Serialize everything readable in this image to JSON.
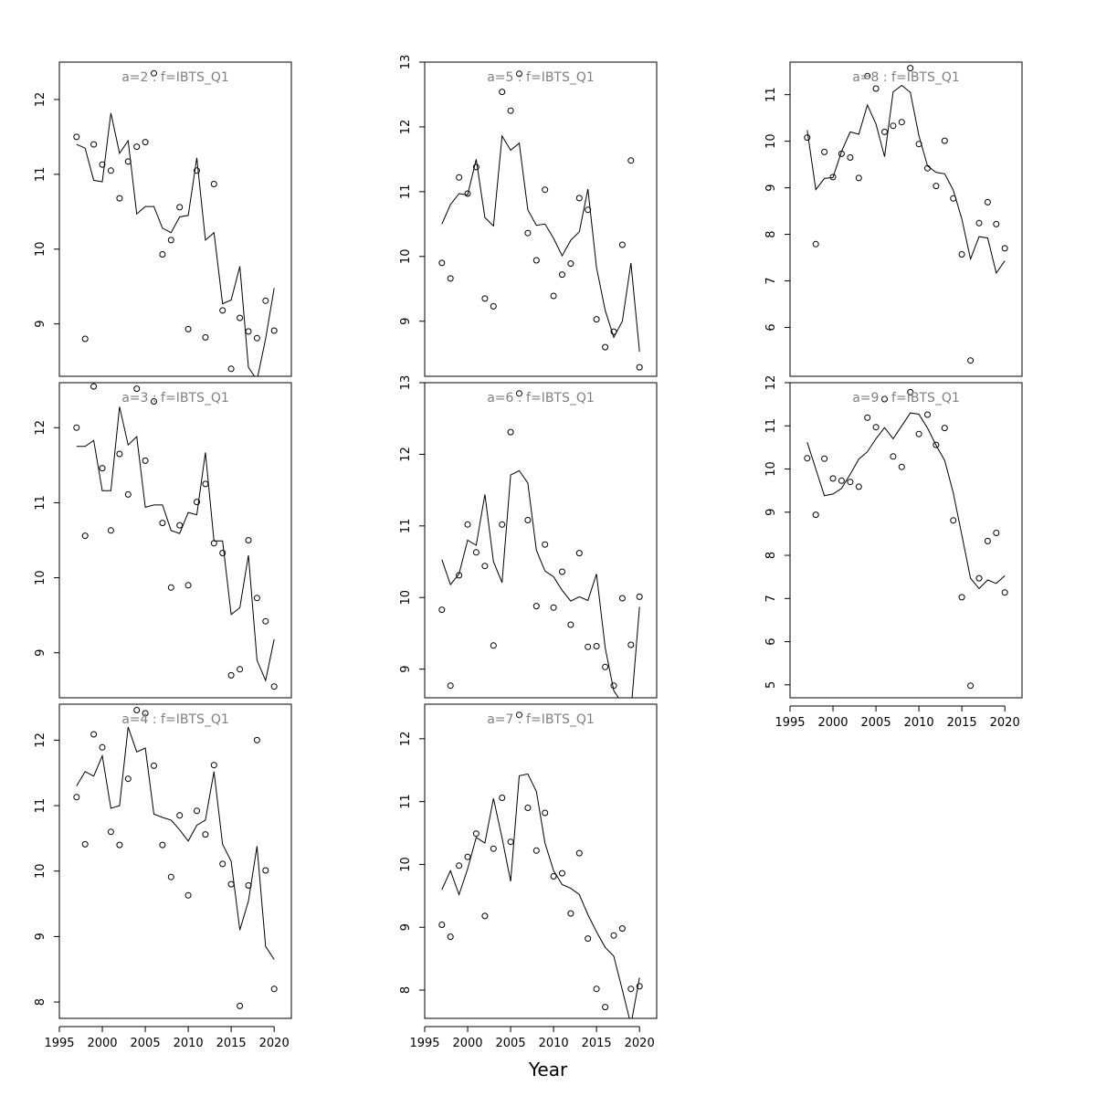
{
  "figure": {
    "xlabel": "Year"
  },
  "chart_data": [
    {
      "type": "scatter",
      "title": "a=2 : f=IBTS_Q1",
      "ylim": [
        8.3,
        12.5
      ],
      "yticks": [
        9,
        10,
        11,
        12
      ],
      "xlim": [
        1995,
        2022
      ],
      "xticks": [],
      "show_x_axis": false,
      "x": [
        1997,
        1998,
        1999,
        2000,
        2001,
        2002,
        2003,
        2004,
        2005,
        2006,
        2007,
        2008,
        2009,
        2010,
        2011,
        2012,
        2013,
        2014,
        2015,
        2016,
        2017,
        2018,
        2019,
        2020
      ],
      "observed": [
        11.5,
        8.8,
        11.4,
        11.13,
        11.05,
        10.68,
        11.17,
        11.37,
        11.43,
        12.35,
        9.93,
        10.12,
        10.56,
        8.93,
        11.05,
        8.82,
        10.87,
        9.18,
        8.4,
        9.08,
        8.9,
        8.81,
        9.31,
        8.91
      ],
      "fitted": [
        11.4,
        11.35,
        10.92,
        10.9,
        11.82,
        11.28,
        11.45,
        10.47,
        10.57,
        10.57,
        10.28,
        10.22,
        10.43,
        10.45,
        11.22,
        10.12,
        10.22,
        9.27,
        9.32,
        9.77,
        8.42,
        8.25,
        8.8,
        9.48
      ]
    },
    {
      "type": "scatter",
      "title": "a=3 : f=IBTS_Q1",
      "ylim": [
        8.4,
        12.6
      ],
      "yticks": [
        9,
        10,
        11,
        12
      ],
      "xlim": [
        1995,
        2022
      ],
      "xticks": [],
      "show_x_axis": false,
      "x": [
        1997,
        1998,
        1999,
        2000,
        2001,
        2002,
        2003,
        2004,
        2005,
        2006,
        2007,
        2008,
        2009,
        2010,
        2011,
        2012,
        2013,
        2014,
        2015,
        2016,
        2017,
        2018,
        2019,
        2020
      ],
      "observed": [
        12.0,
        10.56,
        12.55,
        11.46,
        10.63,
        11.65,
        11.11,
        12.52,
        11.56,
        12.35,
        10.73,
        9.87,
        10.7,
        9.9,
        11.01,
        11.25,
        10.46,
        10.33,
        8.7,
        8.78,
        10.5,
        9.73,
        9.42,
        8.55
      ],
      "fitted": [
        11.75,
        11.75,
        11.83,
        11.16,
        11.16,
        12.28,
        11.77,
        11.88,
        10.94,
        10.97,
        10.97,
        10.63,
        10.59,
        10.87,
        10.84,
        11.67,
        10.49,
        10.49,
        9.51,
        9.6,
        10.3,
        8.9,
        8.63,
        9.18
      ]
    },
    {
      "type": "scatter",
      "title": "a=4 : f=IBTS_Q1",
      "ylim": [
        7.75,
        12.55
      ],
      "yticks": [
        8,
        9,
        10,
        11,
        12
      ],
      "xlim": [
        1995,
        2022
      ],
      "xticks": [
        1995,
        2000,
        2005,
        2010,
        2015,
        2020
      ],
      "show_x_axis": true,
      "x": [
        1997,
        1998,
        1999,
        2000,
        2001,
        2002,
        2003,
        2004,
        2005,
        2006,
        2007,
        2008,
        2009,
        2010,
        2011,
        2012,
        2013,
        2014,
        2015,
        2016,
        2017,
        2018,
        2019,
        2020
      ],
      "observed": [
        11.13,
        10.41,
        12.09,
        11.89,
        10.6,
        10.4,
        11.41,
        12.46,
        12.41,
        11.61,
        10.4,
        9.91,
        10.85,
        9.63,
        10.92,
        10.56,
        11.62,
        10.11,
        9.8,
        7.94,
        9.78,
        12.0,
        10.01,
        8.2
      ],
      "fitted": [
        11.3,
        11.52,
        11.45,
        11.76,
        10.96,
        11.0,
        12.2,
        11.82,
        11.88,
        10.87,
        10.82,
        10.78,
        10.63,
        10.46,
        10.7,
        10.78,
        11.52,
        10.41,
        10.15,
        9.1,
        9.54,
        10.38,
        8.85,
        8.65
      ]
    },
    {
      "type": "scatter",
      "title": "a=5 : f=IBTS_Q1",
      "ylim": [
        8.15,
        13.0
      ],
      "yticks": [
        9,
        10,
        11,
        12,
        13
      ],
      "xlim": [
        1995,
        2022
      ],
      "xticks": [],
      "show_x_axis": false,
      "x": [
        1997,
        1998,
        1999,
        2000,
        2001,
        2002,
        2003,
        2004,
        2005,
        2006,
        2007,
        2008,
        2009,
        2010,
        2011,
        2012,
        2013,
        2014,
        2015,
        2016,
        2017,
        2018,
        2019,
        2020
      ],
      "observed": [
        9.9,
        9.66,
        11.22,
        10.97,
        11.38,
        9.35,
        9.23,
        12.54,
        12.25,
        12.82,
        10.36,
        9.94,
        11.03,
        9.39,
        9.72,
        9.89,
        10.9,
        10.72,
        9.03,
        8.6,
        8.84,
        10.18,
        11.48,
        8.29
      ],
      "fitted": [
        10.5,
        10.8,
        10.97,
        10.95,
        11.5,
        10.6,
        10.47,
        11.86,
        11.64,
        11.75,
        10.72,
        10.48,
        10.5,
        10.28,
        10.01,
        10.25,
        10.38,
        11.04,
        9.83,
        9.17,
        8.75,
        9.0,
        9.9,
        8.53
      ]
    },
    {
      "type": "scatter",
      "title": "a=6 : f=IBTS_Q1",
      "ylim": [
        8.6,
        13.0
      ],
      "yticks": [
        9,
        10,
        11,
        12,
        13
      ],
      "xlim": [
        1995,
        2022
      ],
      "xticks": [],
      "show_x_axis": false,
      "x": [
        1997,
        1998,
        1999,
        2000,
        2001,
        2002,
        2003,
        2004,
        2005,
        2006,
        2007,
        2008,
        2009,
        2010,
        2011,
        2012,
        2013,
        2014,
        2015,
        2016,
        2017,
        2018,
        2019,
        2020
      ],
      "observed": [
        9.83,
        8.77,
        10.31,
        11.02,
        10.63,
        10.44,
        9.33,
        11.02,
        12.31,
        12.85,
        11.08,
        9.88,
        10.74,
        9.86,
        10.36,
        9.62,
        10.62,
        9.31,
        9.32,
        9.03,
        8.77,
        9.99,
        9.34,
        10.01
      ],
      "fitted": [
        10.53,
        10.18,
        10.33,
        10.8,
        10.73,
        11.44,
        10.5,
        10.21,
        11.71,
        11.77,
        11.6,
        10.66,
        10.37,
        10.29,
        10.1,
        9.95,
        10.01,
        9.96,
        10.33,
        9.3,
        8.7,
        8.52,
        8.4,
        9.87
      ]
    },
    {
      "type": "scatter",
      "title": "a=7 : f=IBTS_Q1",
      "ylim": [
        7.55,
        12.55
      ],
      "yticks": [
        8,
        9,
        10,
        11,
        12
      ],
      "xlim": [
        1995,
        2022
      ],
      "xticks": [
        1995,
        2000,
        2005,
        2010,
        2015,
        2020
      ],
      "show_x_axis": true,
      "x": [
        1997,
        1998,
        1999,
        2000,
        2001,
        2002,
        2003,
        2004,
        2005,
        2006,
        2007,
        2008,
        2009,
        2010,
        2011,
        2012,
        2013,
        2014,
        2015,
        2016,
        2017,
        2018,
        2019,
        2020
      ],
      "observed": [
        9.04,
        8.85,
        9.98,
        10.12,
        10.49,
        9.18,
        10.25,
        11.06,
        10.36,
        12.38,
        10.9,
        10.22,
        10.82,
        9.81,
        9.86,
        9.22,
        10.18,
        8.82,
        8.02,
        7.73,
        8.87,
        8.98,
        8.02,
        8.06
      ],
      "fitted": [
        9.6,
        9.9,
        9.52,
        9.93,
        10.43,
        10.34,
        11.05,
        10.42,
        9.73,
        11.41,
        11.44,
        11.16,
        10.34,
        9.9,
        9.68,
        9.62,
        9.52,
        9.2,
        8.93,
        8.68,
        8.54,
        8.0,
        7.45,
        8.2
      ]
    },
    {
      "type": "scatter",
      "title": "a=8 : f=IBTS_Q1",
      "ylim": [
        4.95,
        11.7
      ],
      "yticks": [
        6,
        7,
        8,
        9,
        10,
        11
      ],
      "xlim": [
        1995,
        2022
      ],
      "xticks": [],
      "show_x_axis": false,
      "x": [
        1997,
        1998,
        1999,
        2000,
        2001,
        2002,
        2003,
        2004,
        2005,
        2006,
        2007,
        2008,
        2009,
        2010,
        2011,
        2012,
        2013,
        2014,
        2015,
        2016,
        2017,
        2018,
        2019,
        2020
      ],
      "observed": [
        10.08,
        7.79,
        9.77,
        9.23,
        9.73,
        9.65,
        9.21,
        11.4,
        11.13,
        10.2,
        10.33,
        10.41,
        11.57,
        9.94,
        9.42,
        9.04,
        10.01,
        8.77,
        7.57,
        5.29,
        8.24,
        8.69,
        8.22,
        7.7
      ],
      "fitted": [
        10.24,
        8.96,
        9.2,
        9.22,
        9.78,
        10.2,
        10.15,
        10.78,
        10.37,
        9.67,
        11.06,
        11.2,
        11.05,
        10.12,
        9.47,
        9.33,
        9.3,
        8.95,
        8.33,
        7.47,
        7.95,
        7.92,
        7.17,
        7.43
      ]
    },
    {
      "type": "scatter",
      "title": "a=9 : f=IBTS_Q1",
      "ylim": [
        4.7,
        12.0
      ],
      "yticks": [
        5,
        6,
        7,
        8,
        9,
        10,
        11,
        12
      ],
      "xlim": [
        1995,
        2022
      ],
      "xticks": [
        1995,
        2000,
        2005,
        2010,
        2015,
        2020
      ],
      "show_x_axis": true,
      "x": [
        1997,
        1998,
        1999,
        2000,
        2001,
        2002,
        2003,
        2004,
        2005,
        2006,
        2007,
        2008,
        2009,
        2010,
        2011,
        2012,
        2013,
        2014,
        2015,
        2016,
        2017,
        2018,
        2019,
        2020
      ],
      "observed": [
        10.25,
        8.94,
        10.24,
        9.78,
        9.73,
        9.7,
        9.59,
        11.19,
        10.97,
        11.62,
        10.29,
        10.05,
        11.78,
        10.81,
        11.26,
        10.56,
        10.95,
        8.81,
        7.03,
        4.98,
        7.47,
        8.33,
        8.52,
        7.14
      ],
      "fitted": [
        10.62,
        10.0,
        9.38,
        9.42,
        9.55,
        9.88,
        10.23,
        10.4,
        10.7,
        10.96,
        10.7,
        11.0,
        11.3,
        11.27,
        10.95,
        10.55,
        10.2,
        9.45,
        8.47,
        7.47,
        7.23,
        7.43,
        7.35,
        7.53
      ]
    }
  ]
}
